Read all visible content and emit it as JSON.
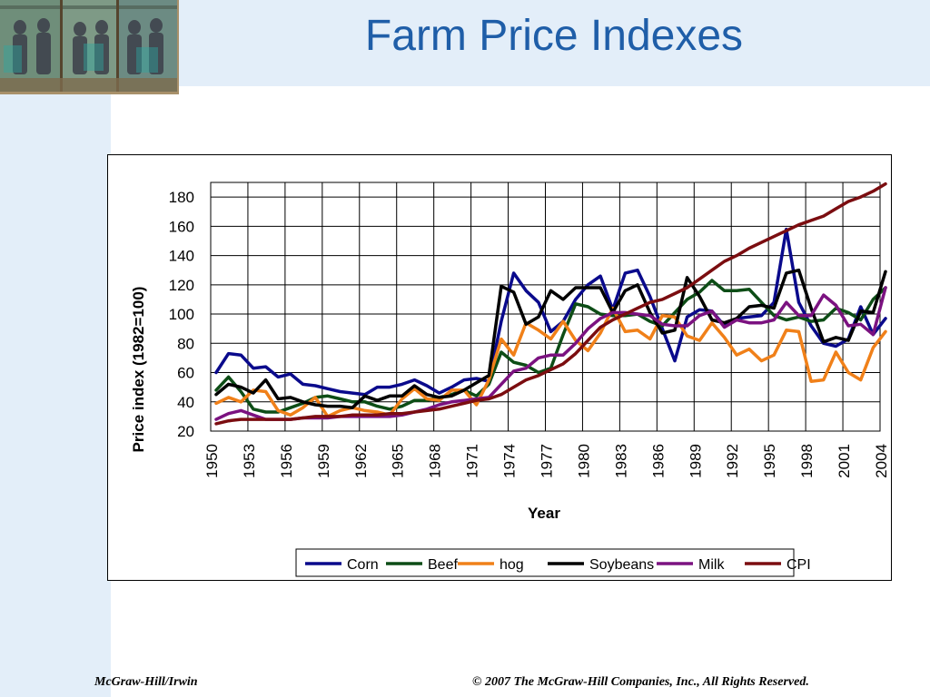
{
  "slide": {
    "title": "Farm Price Indexes",
    "footer_left": "McGraw-Hill/Irwin",
    "footer_right": "© 2007 The McGraw-Hill Companies, Inc., All Rights Reserved."
  },
  "colors": {
    "background_panel": "#e3eef9",
    "title": "#1f5ea8"
  },
  "chart_data": {
    "type": "line",
    "title": "",
    "xlabel": "Year",
    "ylabel": "Price index (1982=100)",
    "xlim": [
      1950,
      2004
    ],
    "ylim": [
      20,
      190
    ],
    "yticks": [
      20,
      40,
      60,
      80,
      100,
      120,
      140,
      160,
      180
    ],
    "xticks": [
      1950,
      1953,
      1956,
      1959,
      1962,
      1965,
      1968,
      1971,
      1974,
      1977,
      1980,
      1983,
      1986,
      1989,
      1992,
      1995,
      1998,
      2001,
      2004
    ],
    "grid": true,
    "legend_position": "bottom",
    "x": [
      1950,
      1951,
      1952,
      1953,
      1954,
      1955,
      1956,
      1957,
      1958,
      1959,
      1960,
      1961,
      1962,
      1963,
      1964,
      1965,
      1966,
      1967,
      1968,
      1969,
      1970,
      1971,
      1972,
      1973,
      1974,
      1975,
      1976,
      1977,
      1978,
      1979,
      1980,
      1981,
      1982,
      1983,
      1984,
      1985,
      1986,
      1987,
      1988,
      1989,
      1990,
      1991,
      1992,
      1993,
      1994,
      1995,
      1996,
      1997,
      1998,
      1999,
      2000,
      2001,
      2002,
      2003,
      2004
    ],
    "series": [
      {
        "name": "Corn",
        "color": "#0a0a8c",
        "values": [
          60,
          73,
          72,
          63,
          64,
          57,
          59,
          52,
          51,
          49,
          47,
          46,
          45,
          50,
          50,
          52,
          55,
          51,
          46,
          50,
          55,
          56,
          54,
          95,
          128,
          116,
          108,
          88,
          95,
          110,
          120,
          126,
          103,
          128,
          130,
          112,
          90,
          68,
          98,
          103,
          102,
          92,
          97,
          98,
          99,
          108,
          158,
          108,
          92,
          80,
          78,
          83,
          105,
          86,
          97
        ]
      },
      {
        "name": "Beef",
        "color": "#0d4d16",
        "values": [
          48,
          57,
          47,
          35,
          33,
          33,
          36,
          39,
          43,
          44,
          42,
          40,
          40,
          37,
          35,
          37,
          41,
          41,
          43,
          45,
          48,
          44,
          52,
          74,
          67,
          65,
          60,
          63,
          86,
          107,
          105,
          100,
          99,
          99,
          100,
          95,
          92,
          101,
          110,
          115,
          123,
          116,
          116,
          117,
          108,
          99,
          96,
          98,
          95,
          96,
          104,
          101,
          96,
          110,
          118
        ]
      },
      {
        "name": "hog",
        "color": "#f08019",
        "values": [
          39,
          43,
          40,
          48,
          47,
          34,
          31,
          36,
          43,
          30,
          34,
          36,
          34,
          33,
          31,
          42,
          49,
          42,
          41,
          48,
          48,
          38,
          55,
          83,
          72,
          94,
          89,
          83,
          95,
          82,
          75,
          87,
          104,
          88,
          89,
          83,
          99,
          98,
          85,
          82,
          94,
          84,
          72,
          76,
          68,
          72,
          89,
          88,
          54,
          55,
          74,
          60,
          55,
          77,
          88
        ]
      },
      {
        "name": "Soybeans",
        "color": "#000000",
        "values": [
          45,
          52,
          50,
          46,
          55,
          42,
          43,
          40,
          38,
          37,
          37,
          36,
          44,
          41,
          44,
          44,
          51,
          45,
          43,
          44,
          48,
          53,
          58,
          119,
          115,
          93,
          98,
          116,
          110,
          118,
          118,
          118,
          101,
          116,
          120,
          101,
          87,
          89,
          125,
          112,
          96,
          94,
          97,
          105,
          106,
          104,
          128,
          130,
          104,
          81,
          84,
          82,
          102,
          101,
          129
        ]
      },
      {
        "name": "Milk",
        "color": "#7b1280",
        "values": [
          28,
          32,
          34,
          31,
          28,
          28,
          28,
          29,
          29,
          29,
          30,
          30,
          30,
          30,
          30,
          31,
          33,
          35,
          38,
          40,
          41,
          42,
          43,
          52,
          61,
          63,
          70,
          72,
          72,
          80,
          90,
          97,
          101,
          101,
          100,
          99,
          93,
          92,
          92,
          99,
          102,
          91,
          96,
          94,
          94,
          96,
          108,
          99,
          99,
          113,
          106,
          92,
          93,
          86,
          118
        ]
      },
      {
        "name": "CPI",
        "color": "#7b0d10",
        "values": [
          25,
          27,
          28,
          28,
          28,
          28,
          28,
          29,
          30,
          30,
          30,
          31,
          31,
          31,
          32,
          32,
          33,
          34,
          35,
          37,
          39,
          41,
          42,
          45,
          50,
          55,
          58,
          62,
          66,
          73,
          82,
          91,
          96,
          100,
          104,
          108,
          110,
          114,
          118,
          124,
          130,
          136,
          140,
          145,
          149,
          153,
          157,
          161,
          164,
          167,
          172,
          177,
          180,
          184,
          189
        ]
      }
    ]
  }
}
